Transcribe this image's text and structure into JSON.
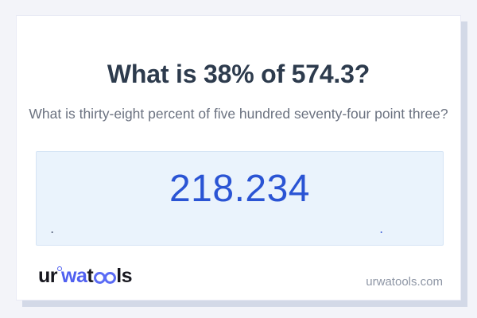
{
  "card": {
    "question_title": "What is 38% of 574.3?",
    "question_in_words": "What is thirty-eight percent of five hundred seventy-four point three?",
    "answer": {
      "value": "218.234",
      "dot_left": ".",
      "dot_right": "."
    },
    "footer": {
      "logo": {
        "part_ur": "ur",
        "part_wa": "wa",
        "part_t": "t",
        "part_oo": "oo",
        "part_ls": "ls",
        "full_name": "urwatools"
      },
      "site_url": "urwatools.com"
    }
  },
  "colors": {
    "page_background": "#f3f4f9",
    "card_background": "#ffffff",
    "card_shadow": "#d3d9e7",
    "title_text": "#2d3b4d",
    "subtitle_text": "#6b7280",
    "answer_box_background": "#eaf3fc",
    "answer_box_border": "#d5e4f5",
    "answer_text_blue": "#2a54d4",
    "logo_dark": "#17171f",
    "logo_blue": "#4f5ff0",
    "footer_url_text": "#8e96a5"
  }
}
